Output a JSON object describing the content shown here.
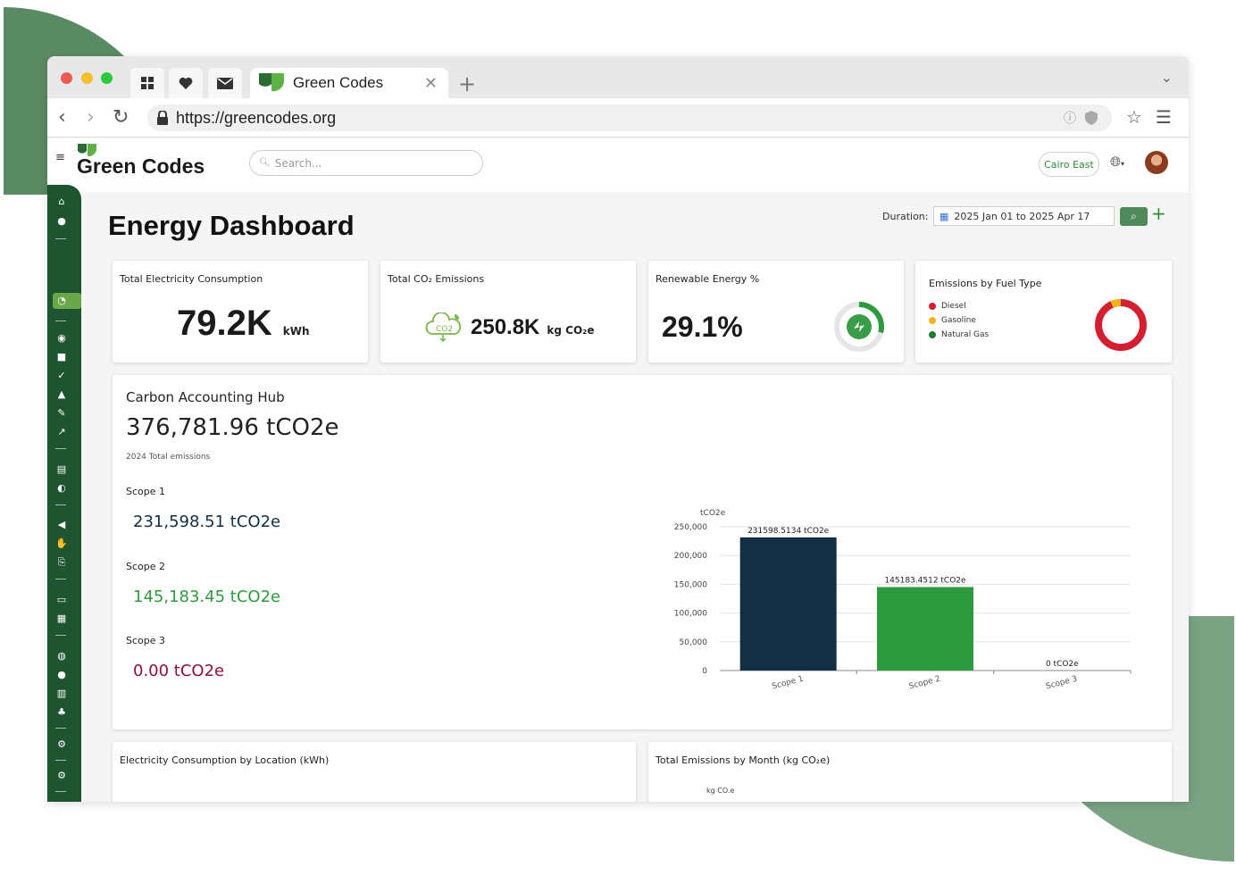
{
  "browser": {
    "tab_title": "Green Codes",
    "url": "https://greencodes.org"
  },
  "app": {
    "brand": "Green Codes",
    "search_placeholder": "Search...",
    "region": "Cairo East"
  },
  "page": {
    "title": "Energy Dashboard",
    "duration_label": "Duration:",
    "duration_value": "2025 Jan 01 to 2025 Apr 17"
  },
  "kpis": {
    "electricity": {
      "title": "Total Electricity Consumption",
      "value": "79.2K",
      "unit": "kWh"
    },
    "co2": {
      "title": "Total CO₂ Emissions",
      "value": "250.8K",
      "unit": "kg CO₂e"
    },
    "renewable": {
      "title": "Renewable Energy %",
      "value": "29.1%",
      "fraction": 0.291
    },
    "fuel": {
      "title": "Emissions by Fuel Type",
      "legend": [
        "Diesel",
        "Gasoline",
        "Natural Gas"
      ]
    }
  },
  "colors": {
    "brand_green": "#1e5530",
    "diesel": "#d31f2f",
    "gasoline": "#f2b418",
    "natural_gas": "#1e7a34",
    "scope1": "#142f44",
    "scope2": "#2e9a3e",
    "scope3": "#8c1237"
  },
  "hub": {
    "title": "Carbon Accounting Hub",
    "total": "376,781.96 tCO2e",
    "subtitle": "2024 Total emissions",
    "scopes": [
      {
        "label": "Scope 1",
        "value": "231,598.51 tCO2e"
      },
      {
        "label": "Scope 2",
        "value": "145,183.45 tCO2e"
      },
      {
        "label": "Scope 3",
        "value": "0.00 tCO2e"
      }
    ]
  },
  "chart_data": {
    "type": "bar",
    "categories": [
      "Scope 1",
      "Scope 2",
      "Scope 3"
    ],
    "values": [
      231598.5134,
      145183.4512,
      0
    ],
    "data_labels": [
      "231598.5134 tCO2e",
      "145183.4512 tCO2e",
      "0 tCO2e"
    ],
    "ylabel": "tCO2e",
    "ylim": [
      0,
      250000
    ],
    "yticks": [
      "0",
      "50,000",
      "100,000",
      "150,000",
      "200,000",
      "250,000"
    ],
    "grid": true
  },
  "bottom": {
    "electricity_title": "Electricity Consumption by Location (kWh)",
    "emissions_title": "Total Emissions by Month (kg CO₂e)",
    "emissions_ylabel": "kg CO.e"
  }
}
